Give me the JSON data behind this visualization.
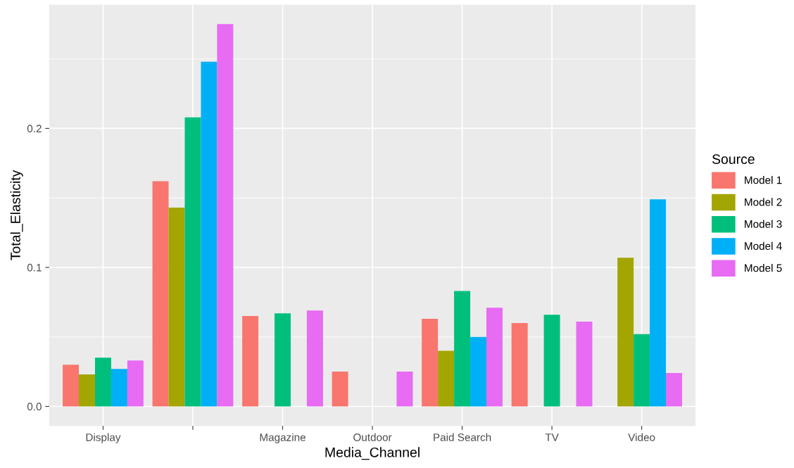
{
  "chart_data": {
    "type": "bar",
    "xlabel": "Media_Channel",
    "ylabel": "Total_Elasticity",
    "legend_title": "Source",
    "categories": [
      "Display",
      null,
      "Magazine",
      "Outdoor",
      "Paid Search",
      "TV",
      "Video"
    ],
    "series": [
      {
        "name": "Model 1",
        "color": "#f8766d",
        "values": [
          0.03,
          0.162,
          0.065,
          0.025,
          0.063,
          0.06,
          null
        ]
      },
      {
        "name": "Model 2",
        "color": "#a3a500",
        "values": [
          0.023,
          0.143,
          null,
          null,
          0.04,
          null,
          0.107
        ]
      },
      {
        "name": "Model 3",
        "color": "#00bf7d",
        "values": [
          0.035,
          0.208,
          0.067,
          null,
          0.083,
          0.066,
          0.052
        ]
      },
      {
        "name": "Model 4",
        "color": "#00b0f6",
        "values": [
          0.027,
          0.248,
          null,
          null,
          0.05,
          null,
          0.149
        ]
      },
      {
        "name": "Model 5",
        "color": "#e76bf3",
        "values": [
          0.033,
          0.275,
          0.069,
          0.025,
          0.071,
          0.061,
          0.024
        ]
      }
    ],
    "ylim": [
      -0.014,
      0.289
    ],
    "yticks": [
      {
        "value": 0,
        "label": "0.0"
      },
      0.1,
      0.2
    ],
    "grid": true,
    "legend": "right"
  }
}
